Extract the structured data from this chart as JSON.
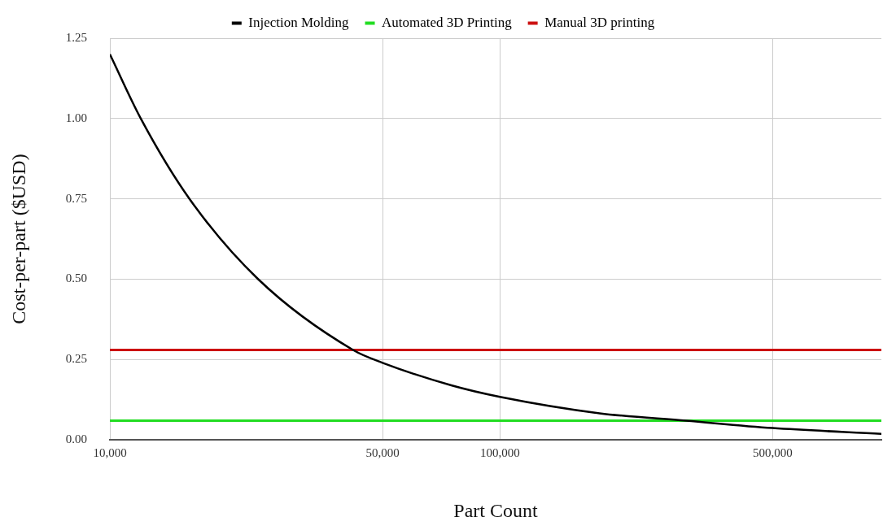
{
  "chart_data": {
    "type": "line",
    "xlabel": "Part Count",
    "ylabel": "Cost-per-part ($USD)",
    "log": "x",
    "grid": true,
    "legend": "top",
    "marker": "none",
    "line_style": "solid",
    "xlim": [
      10000,
      950000
    ],
    "xticks": [
      {
        "value": 10000,
        "label": "10,000"
      },
      {
        "value": 50000,
        "label": "50,000"
      },
      {
        "value": 100000,
        "label": "100,000"
      },
      {
        "value": 500000,
        "label": "500,000"
      }
    ],
    "ylim": [
      0,
      1.25
    ],
    "yticks": [
      {
        "value": 0,
        "label": "0.00"
      },
      {
        "value": 0.25,
        "label": "0.25"
      },
      {
        "value": 0.5,
        "label": "0.50"
      },
      {
        "value": 0.75,
        "label": "0.75"
      },
      {
        "value": 1,
        "label": "1.00"
      },
      {
        "value": 1.25,
        "label": "1.25"
      }
    ],
    "series": [
      {
        "name": "Injection Molding",
        "color": "#000000",
        "x": [
          10000,
          12000,
          16000,
          24000,
          42000,
          50000,
          75000,
          100000,
          180000,
          300000,
          500000,
          950000
        ],
        "values": [
          1.2,
          1.0,
          0.75,
          0.5,
          0.28,
          0.24,
          0.17,
          0.134,
          0.083,
          0.06,
          0.037,
          0.019
        ]
      },
      {
        "name": "Automated 3D Printing",
        "color": "#22dd22",
        "x": [
          10000,
          950000
        ],
        "values": [
          0.06,
          0.06
        ]
      },
      {
        "name": "Manual 3D printing",
        "color": "#cc1111",
        "x": [
          10000,
          950000
        ],
        "values": [
          0.28,
          0.28
        ]
      }
    ]
  }
}
